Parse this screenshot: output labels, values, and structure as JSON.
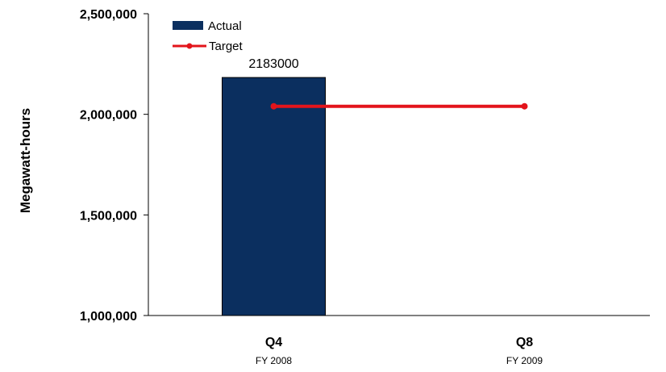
{
  "chart_data": {
    "type": "bar",
    "title": "",
    "xlabel": "",
    "ylabel": "Megawatt-hours",
    "ylim": [
      1000000,
      2500000
    ],
    "yticks": [
      1000000,
      1500000,
      2000000,
      2500000
    ],
    "ytick_labels": [
      "1,000,000",
      "1,500,000",
      "2,000,000",
      "2,500,000"
    ],
    "categories": [
      "Q4",
      "Q8"
    ],
    "category_sublabels": [
      "FY 2008",
      "FY 2009"
    ],
    "series": [
      {
        "name": "Actual",
        "type": "bar",
        "color": "#0b2f5f",
        "values": [
          2183000,
          null
        ],
        "data_labels": [
          "2183000",
          ""
        ]
      },
      {
        "name": "Target",
        "type": "line",
        "color": "#e3141b",
        "values": [
          2040000,
          2040000
        ]
      }
    ],
    "legend": {
      "position": "top-left",
      "entries": [
        "Actual",
        "Target"
      ]
    },
    "grid": false
  }
}
